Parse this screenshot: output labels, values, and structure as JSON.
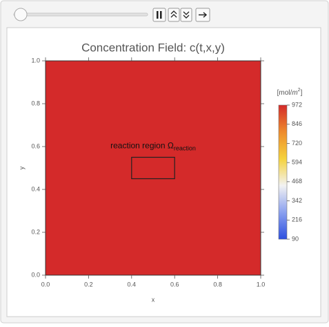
{
  "chart_data": {
    "type": "heatmap",
    "title": "Concentration Field: c(t,x,y)",
    "xlabel": "x",
    "ylabel": "y",
    "value": 972,
    "xlim": [
      0,
      1
    ],
    "ylim": [
      0,
      1
    ],
    "xticks": [
      {
        "value": 0,
        "label": "0.0"
      },
      0.2,
      0.4,
      0.6,
      0.8,
      {
        "value": 1,
        "label": "1.0"
      }
    ],
    "yticks": [
      {
        "value": 0,
        "label": "0.0"
      },
      0.2,
      0.4,
      0.6,
      0.8,
      {
        "value": 1,
        "label": "1.0"
      }
    ],
    "region": {
      "x": [
        0.4,
        0.6
      ],
      "y": [
        0.45,
        0.55
      ]
    },
    "annotation": {
      "text": "reaction region Ω",
      "subscript": "reaction"
    },
    "colorbar": {
      "label_open": "[mol/",
      "label_unit": "m",
      "label_sup": "2",
      "label_close": "]",
      "clim": [
        90,
        972
      ],
      "ticks": [
        90,
        216,
        342,
        468,
        594,
        720,
        846,
        972
      ],
      "colormap": [
        "#2c4fe0",
        "#8aa0ef",
        "#f2f2f2",
        "#f5d23c",
        "#ee8b2c",
        "#d42a2a"
      ]
    }
  }
}
